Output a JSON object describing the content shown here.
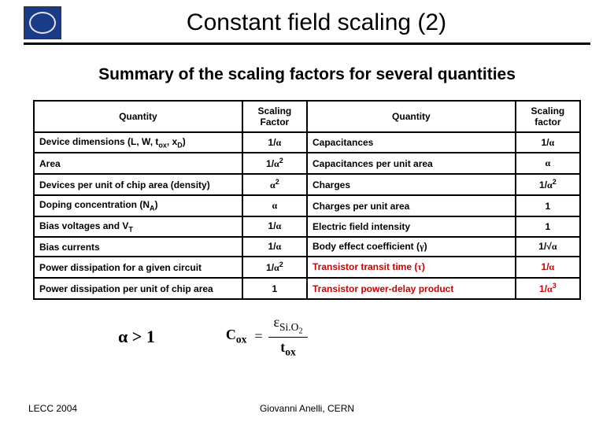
{
  "title": "Constant field scaling (2)",
  "subtitle": "Summary of the scaling factors for several quantities",
  "headers": {
    "q1": "Quantity",
    "f1": "Scaling Factor",
    "q2": "Quantity",
    "f2": "Scaling factor"
  },
  "rows": [
    {
      "q1_html": "Device dimensions (L, W, t<sub>ox</sub>, x<sub>D</sub>)",
      "f1_html": "1/<span class='alpha'>α</span>",
      "q2_html": "Capacitances",
      "f2_html": "1/<span class='alpha'>α</span>",
      "red": false
    },
    {
      "q1_html": "Area",
      "f1_html": "1/<span class='alpha'>α</span><sup>2</sup>",
      "q2_html": "Capacitances per unit area",
      "f2_html": "<span class='alpha'>α</span>",
      "red": false
    },
    {
      "q1_html": "Devices per unit of chip area (density)",
      "f1_html": "<span class='alpha'>α</span><sup>2</sup>",
      "q2_html": "Charges",
      "f2_html": "1/<span class='alpha'>α</span><sup>2</sup>",
      "red": false
    },
    {
      "q1_html": "Doping concentration (N<sub>A</sub>)",
      "f1_html": "<span class='alpha'>α</span>",
      "q2_html": "Charges per unit area",
      "f2_html": "1",
      "red": false
    },
    {
      "q1_html": "Bias voltages and V<sub>T</sub>",
      "f1_html": "1/<span class='alpha'>α</span>",
      "q2_html": "Electric field intensity",
      "f2_html": "1",
      "red": false
    },
    {
      "q1_html": "Bias currents",
      "f1_html": "1/<span class='alpha'>α</span>",
      "q2_html": "Body effect coefficient (<span class='alpha'>γ</span>)",
      "f2_html": "1/√<span class='alpha'>α</span>",
      "red": false
    },
    {
      "q1_html": "Power dissipation for a given circuit",
      "f1_html": "1/<span class='alpha'>α</span><sup>2</sup>",
      "q2_html": "Transistor transit time (<span class='alpha'>τ</span>)",
      "f2_html": "1/<span class='alpha'>α</span>",
      "red": true
    },
    {
      "q1_html": "Power dissipation per unit of chip area",
      "f1_html": "1",
      "q2_html": "Transistor power-delay product",
      "f2_html": "1/<span class='alpha'>α</span><sup>3</sup>",
      "red": true
    }
  ],
  "alpha_gt": "α > 1",
  "formula": {
    "cox": "C",
    "cox_sub": "ox",
    "eq": "=",
    "num_eps": "ε",
    "num_sub": "Si.O",
    "num_sub2": "2",
    "den": "t",
    "den_sub": "ox"
  },
  "footer_left": "LECC 2004",
  "footer_center": "Giovanni Anelli, CERN"
}
